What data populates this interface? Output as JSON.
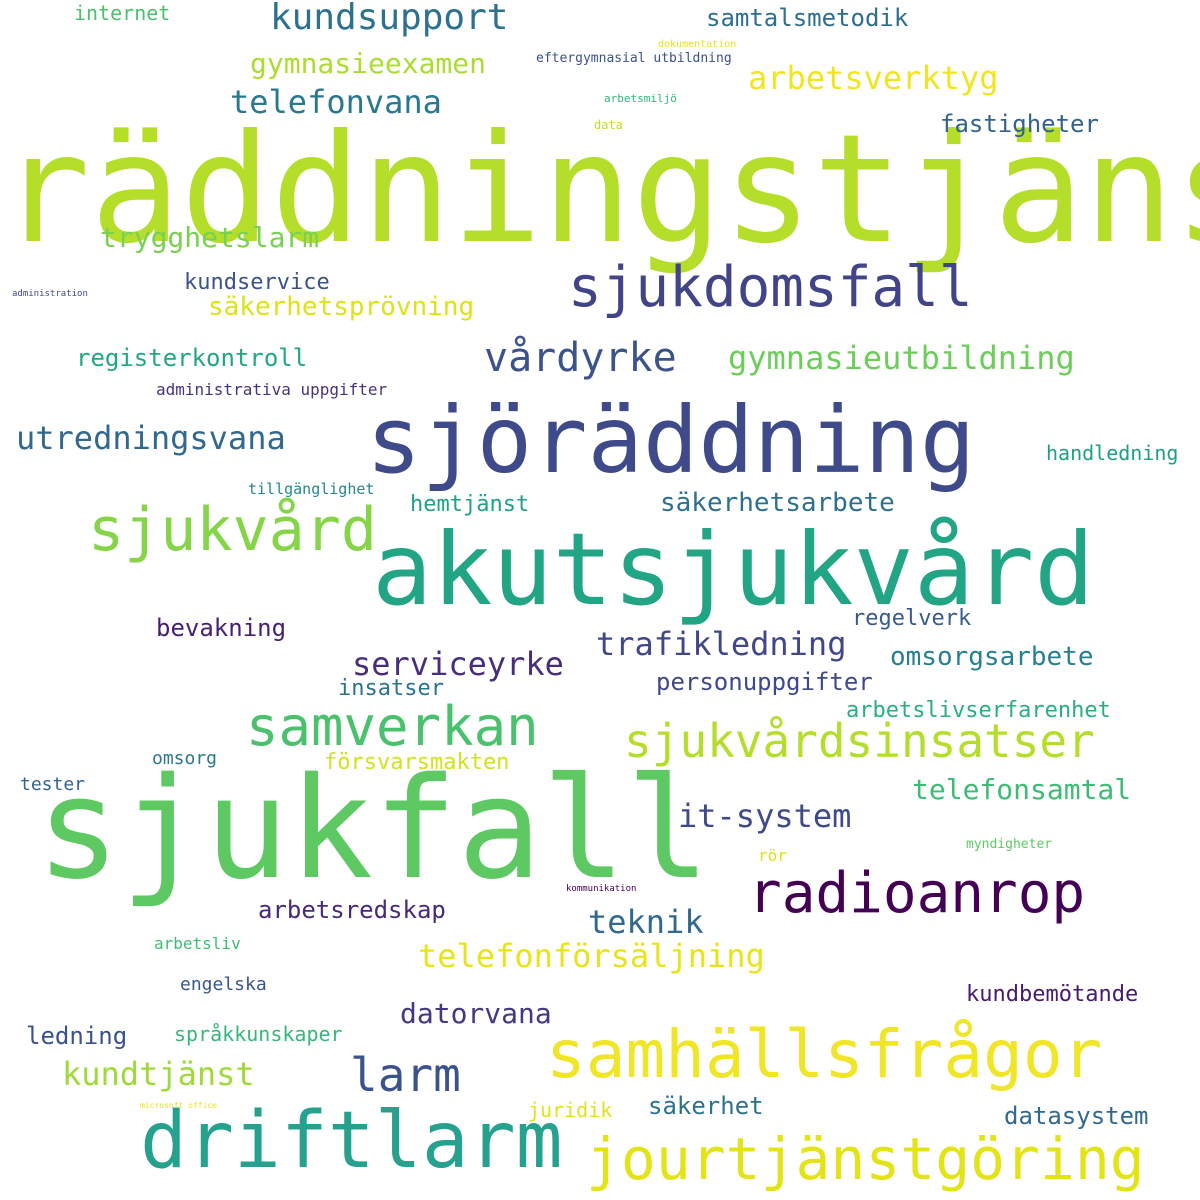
{
  "words": [
    {
      "text": "räddningstjänst",
      "color": "#b5de2b"
    },
    {
      "text": "sjukfall",
      "color": "#5ec962"
    },
    {
      "text": "akutsjukvård",
      "color": "#21a585"
    },
    {
      "text": "sjöräddning",
      "color": "#3e4a89"
    },
    {
      "text": "samhällsfrågor",
      "color": "#f0e527"
    },
    {
      "text": "driftlarm",
      "color": "#25a18e"
    },
    {
      "text": "jourtjänstgöring",
      "color": "#e2e418"
    },
    {
      "text": "radioanrop",
      "color": "#440154"
    },
    {
      "text": "sjukdomsfall",
      "color": "#414487"
    },
    {
      "text": "sjukvård",
      "color": "#86d549"
    },
    {
      "text": "samverkan",
      "color": "#4ac16d"
    },
    {
      "text": "sjukvårdsinsatser",
      "color": "#b5de2b"
    },
    {
      "text": "larm",
      "color": "#3b528b"
    },
    {
      "text": "vårdyrke",
      "color": "#3b528b"
    },
    {
      "text": "kundsupport",
      "color": "#2c728e"
    },
    {
      "text": "gymnasieutbildning",
      "color": "#6ccd5a"
    },
    {
      "text": "utredningsvana",
      "color": "#31688e"
    },
    {
      "text": "telefonvana",
      "color": "#2a788e"
    },
    {
      "text": "arbetsverktyg",
      "color": "#f1e51d"
    },
    {
      "text": "gymnasieexamen",
      "color": "#addc30"
    },
    {
      "text": "trygghetslarm",
      "color": "#7ad151"
    },
    {
      "text": "trafikledning",
      "color": "#3f4788"
    },
    {
      "text": "serviceyrke",
      "color": "#472d7b"
    },
    {
      "text": "kundtjänst",
      "color": "#9fda3a"
    },
    {
      "text": "telefonförsäljning",
      "color": "#e7e419"
    },
    {
      "text": "it-system",
      "color": "#3e4a89"
    },
    {
      "text": "teknik",
      "color": "#31688e"
    },
    {
      "text": "samtalsmetodik",
      "color": "#2e6e8e"
    },
    {
      "text": "datorvana",
      "color": "#453781"
    },
    {
      "text": "säkerhetsarbete",
      "color": "#2d708e"
    },
    {
      "text": "registerkontroll",
      "color": "#22a785"
    },
    {
      "text": "omsorgsarbete",
      "color": "#26818e"
    },
    {
      "text": "telefonsamtal",
      "color": "#3dbc74"
    },
    {
      "text": "arbetsredskap",
      "color": "#482878"
    },
    {
      "text": "säkerhetsprövning",
      "color": "#dde318"
    },
    {
      "text": "bevakning",
      "color": "#481f70"
    },
    {
      "text": "fastigheter",
      "color": "#33628d"
    },
    {
      "text": "säkerhet",
      "color": "#2c728e"
    },
    {
      "text": "personuppgifter",
      "color": "#3e4989"
    },
    {
      "text": "arbetslivserfarenhet",
      "color": "#29af7f"
    },
    {
      "text": "försvarsmakten",
      "color": "#d2e21b"
    },
    {
      "text": "insatser",
      "color": "#2c738e"
    },
    {
      "text": "kundservice",
      "color": "#3b528b"
    },
    {
      "text": "kundbemötande",
      "color": "#481a6c"
    },
    {
      "text": "datasystem",
      "color": "#31688e"
    },
    {
      "text": "ledning",
      "color": "#3b518b"
    },
    {
      "text": "regelverk",
      "color": "#365c8d"
    },
    {
      "text": "hemtjänst",
      "color": "#1fa088"
    },
    {
      "text": "internet",
      "color": "#4ac16d"
    },
    {
      "text": "juridik",
      "color": "#dfe318"
    },
    {
      "text": "handledning",
      "color": "#1f9f88"
    },
    {
      "text": "språkkunskaper",
      "color": "#35b779"
    },
    {
      "text": "engelska",
      "color": "#39568c"
    },
    {
      "text": "administrativa uppgifter",
      "color": "#46337e"
    },
    {
      "text": "omsorg",
      "color": "#2a788e"
    },
    {
      "text": "tester",
      "color": "#33638d"
    },
    {
      "text": "arbetsliv",
      "color": "#3fbc73"
    },
    {
      "text": "tillgänglighet",
      "color": "#24868e"
    },
    {
      "text": "rör",
      "color": "#dde318"
    },
    {
      "text": "eftergymnasial utbildning",
      "color": "#3b518b"
    },
    {
      "text": "myndigheter",
      "color": "#5ec962"
    },
    {
      "text": "arbetsmiljö",
      "color": "#35b779"
    },
    {
      "text": "data",
      "color": "#bddf26"
    },
    {
      "text": "dokumentation",
      "color": "#e5e419"
    },
    {
      "text": "kommunikation",
      "color": "#440154"
    },
    {
      "text": "administration",
      "color": "#3e4a89"
    },
    {
      "text": "microsoft office",
      "color": "#e7e419"
    }
  ]
}
